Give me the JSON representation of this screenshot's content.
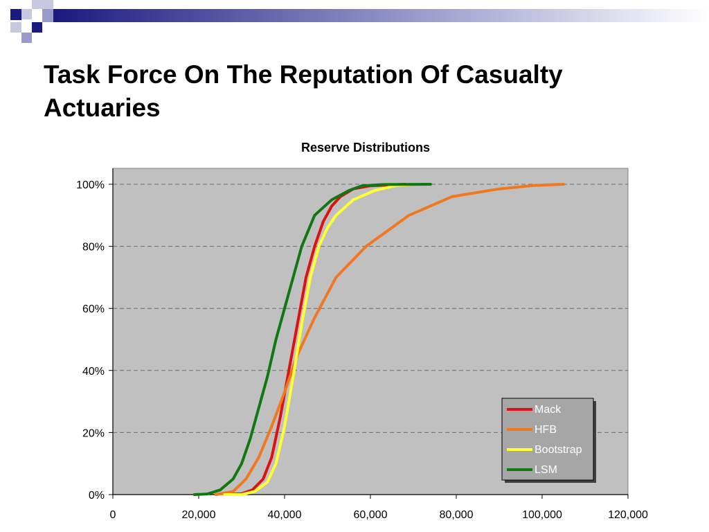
{
  "slide": {
    "title": "Task Force On The Reputation Of Casualty Actuaries"
  },
  "chart_data": {
    "type": "line",
    "title": "Reserve Distributions",
    "xlabel": "",
    "ylabel": "",
    "xlim": [
      0,
      120000
    ],
    "ylim": [
      0,
      100
    ],
    "x_ticks": [
      "0",
      "20,000",
      "40,000",
      "60,000",
      "80,000",
      "100,000",
      "120,000"
    ],
    "y_ticks": [
      "0%",
      "20%",
      "40%",
      "60%",
      "80%",
      "100%"
    ],
    "grid": "horizontal dashed",
    "plot_background": "#c0c0c0",
    "legend_position": "bottom-right",
    "series": [
      {
        "name": "Mack",
        "color": "#dd1111",
        "points": [
          [
            26000,
            0
          ],
          [
            30000,
            0.3
          ],
          [
            32500,
            1.5
          ],
          [
            35000,
            5
          ],
          [
            37000,
            12
          ],
          [
            39000,
            25
          ],
          [
            41000,
            40
          ],
          [
            43000,
            55
          ],
          [
            45000,
            70
          ],
          [
            47000,
            80
          ],
          [
            49000,
            88
          ],
          [
            51000,
            93
          ],
          [
            53000,
            96
          ],
          [
            56000,
            98.5
          ],
          [
            60000,
            99.5
          ],
          [
            68000,
            100
          ]
        ]
      },
      {
        "name": "HFB",
        "color": "#f07820",
        "points": [
          [
            24000,
            0
          ],
          [
            28000,
            1
          ],
          [
            31000,
            5
          ],
          [
            34000,
            12
          ],
          [
            37000,
            22
          ],
          [
            40000,
            33
          ],
          [
            43000,
            45
          ],
          [
            47000,
            57
          ],
          [
            52000,
            70
          ],
          [
            59000,
            80
          ],
          [
            69000,
            90
          ],
          [
            79000,
            96
          ],
          [
            90000,
            98.5
          ],
          [
            98000,
            99.6
          ],
          [
            105000,
            100
          ]
        ]
      },
      {
        "name": "Bootstrap",
        "color": "#ffff33",
        "points": [
          [
            26000,
            0
          ],
          [
            30000,
            0
          ],
          [
            33000,
            1
          ],
          [
            36000,
            4
          ],
          [
            38000,
            10
          ],
          [
            40000,
            22
          ],
          [
            42000,
            38
          ],
          [
            44000,
            55
          ],
          [
            46000,
            70
          ],
          [
            48000,
            80
          ],
          [
            50000,
            86
          ],
          [
            52000,
            90
          ],
          [
            56000,
            95
          ],
          [
            61000,
            98
          ],
          [
            66000,
            99.6
          ],
          [
            70000,
            100
          ]
        ]
      },
      {
        "name": "LSM",
        "color": "#117711",
        "points": [
          [
            19000,
            0
          ],
          [
            22000,
            0.2
          ],
          [
            25000,
            1.5
          ],
          [
            28000,
            5
          ],
          [
            30000,
            10
          ],
          [
            32000,
            18
          ],
          [
            34000,
            28
          ],
          [
            36000,
            38
          ],
          [
            38000,
            50
          ],
          [
            40000,
            60
          ],
          [
            42000,
            70
          ],
          [
            44000,
            80
          ],
          [
            47000,
            90
          ],
          [
            51000,
            95
          ],
          [
            55000,
            98
          ],
          [
            58000,
            99.5
          ],
          [
            63000,
            99.9
          ],
          [
            74000,
            100
          ]
        ]
      }
    ]
  }
}
